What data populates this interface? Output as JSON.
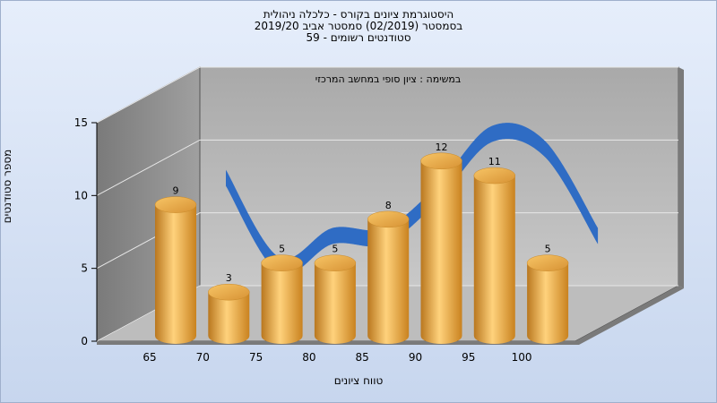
{
  "titles": {
    "line1": "היסטוגרמת ציונים בקורס - כלכלה ניהולית",
    "line2": "בסמסטר  (02/2019)  סמסטר אביב 2019/20",
    "line3": "סטודנטים רשומים - 59"
  },
  "chart_data": {
    "type": "bar",
    "annotation": "במשימה : ציון סופי במחשב המרכזי",
    "xlabel": "טווח ציונים",
    "ylabel": "מספר סטודנטים",
    "categories": [
      "65",
      "70",
      "75",
      "80",
      "85",
      "90",
      "95",
      "100"
    ],
    "values": [
      9,
      3,
      5,
      5,
      8,
      12,
      11,
      5
    ],
    "yticks": [
      0,
      5,
      10,
      15
    ],
    "ylim": [
      0,
      15
    ],
    "curve": true,
    "grid": true,
    "colors": {
      "bar": "#e8a33c",
      "curve": "#2f6cc4",
      "back": "#b8b8b8",
      "side": "#8a8a8a",
      "floor": "#bdbdbd"
    }
  }
}
